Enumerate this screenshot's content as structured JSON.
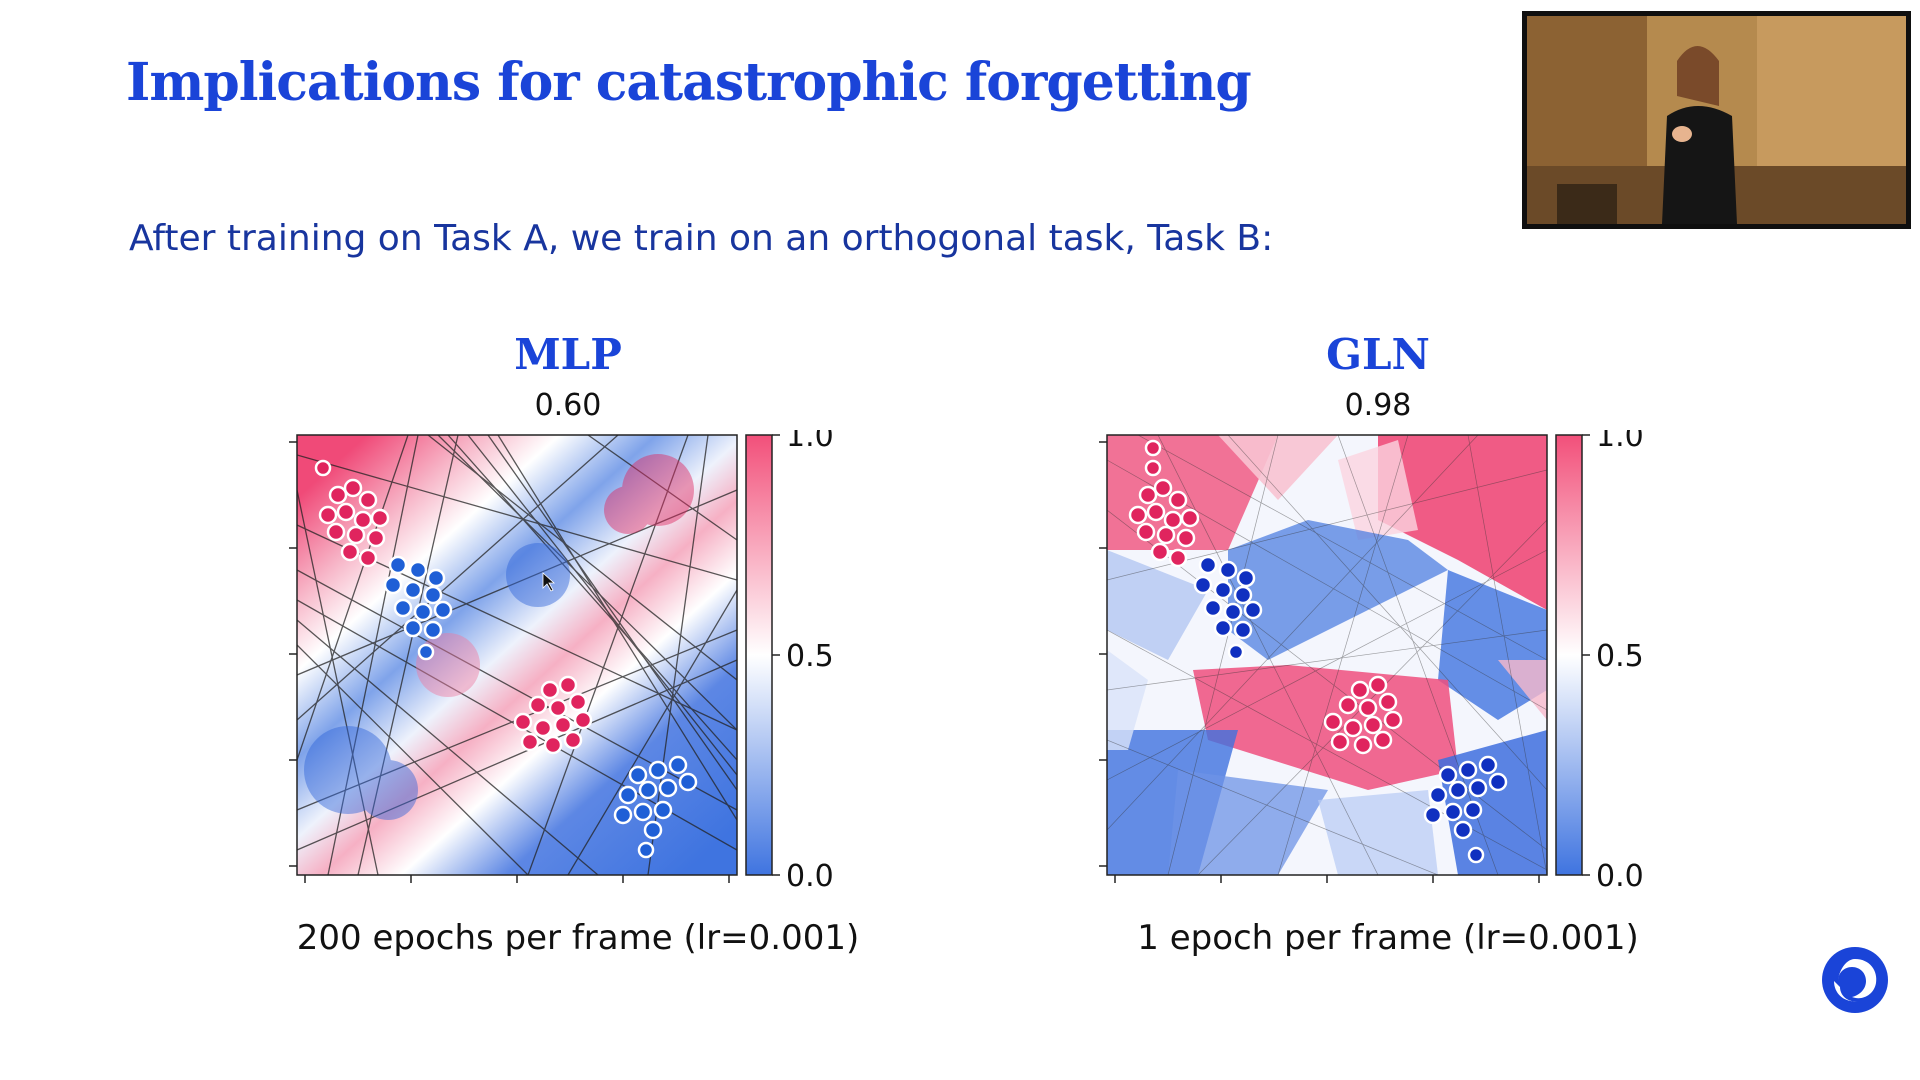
{
  "slide": {
    "title": "Implications for catastrophic forgetting",
    "subtitle": "After training on Task A, we train on an orthogonal task, Task B:",
    "accent_color": "#1a44d8"
  },
  "panels": [
    {
      "id": "mlp",
      "heading": "MLP",
      "score": "0.60",
      "caption": "200 epochs per frame (lr=0.001)",
      "colorbar_ticks": [
        "1.0",
        "0.5",
        "0.0"
      ]
    },
    {
      "id": "gln",
      "heading": "GLN",
      "score": "0.98",
      "caption": "1 epoch per frame (lr=0.001)",
      "colorbar_ticks": [
        "1.0",
        "0.5",
        "0.0"
      ]
    }
  ],
  "colors": {
    "positive_class": "#e0245e",
    "negative_class": "#1f5fd6",
    "heat_high": "#f2507a",
    "heat_low": "#3f74e0"
  },
  "webcam": {
    "content": "speaker-video-feed"
  },
  "icons": {
    "logo": "deepmind-logo-icon"
  }
}
